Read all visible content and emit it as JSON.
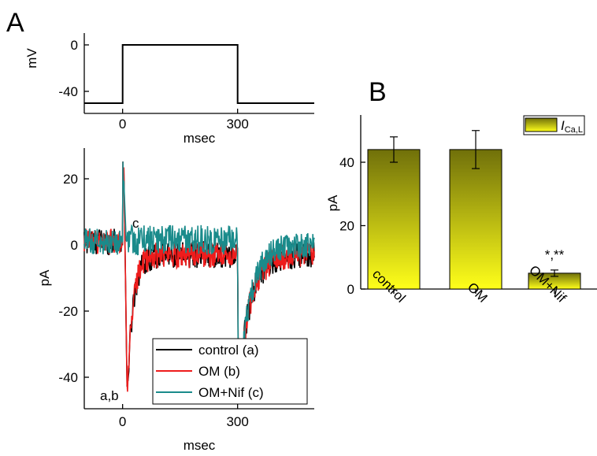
{
  "panel_labels": {
    "a": "A",
    "b": "B"
  },
  "chart_data": [
    {
      "type": "line",
      "panel": "A-top",
      "xlabel": "msec",
      "ylabel": "mV",
      "xlim": [
        -100,
        500
      ],
      "ylim": [
        -60,
        8
      ],
      "xticks": [
        "0",
        "300"
      ],
      "yticks": [
        "0",
        "-40"
      ],
      "series": [
        {
          "x": [
            -100,
            0,
            0,
            300,
            300,
            500
          ],
          "y": [
            -50,
            -50,
            0,
            0,
            -50,
            -50
          ],
          "color": "#000000"
        }
      ]
    },
    {
      "type": "line",
      "panel": "A-bottom",
      "xlabel": "msec",
      "ylabel": "pA",
      "xlim": [
        -100,
        500
      ],
      "ylim": [
        -50,
        30
      ],
      "xticks": [
        "0",
        "300"
      ],
      "yticks": [
        "20",
        "0",
        "-20",
        "-40"
      ],
      "annotations": [
        "c",
        "a,b"
      ],
      "series": [
        {
          "name": "control (a)",
          "color": "#000000",
          "peak": -46,
          "tail": -44,
          "baseline_after": -3
        },
        {
          "name": "OM (b)",
          "color": "#ee1c1c",
          "peak": -45,
          "tail": -44,
          "baseline_after": -3
        },
        {
          "name": "OM+Nif (c)",
          "color": "#1a8b8b",
          "peak": -4,
          "tail": -46,
          "baseline_after": 0
        }
      ]
    },
    {
      "type": "bar",
      "panel": "B",
      "ylabel": "pA",
      "ylim": [
        0,
        55
      ],
      "yticks": [
        "0",
        "20",
        "40"
      ],
      "categories": [
        "control",
        "OM",
        "OM+Nif"
      ],
      "values": [
        44,
        44,
        5
      ],
      "errors": [
        4,
        6,
        1
      ],
      "significance": [
        "",
        "",
        "*,**"
      ],
      "legend": {
        "label": "I",
        "subscript": "Ca,L"
      },
      "colors": {
        "top": "#70700a",
        "bottom": "#ffff1a"
      }
    }
  ]
}
